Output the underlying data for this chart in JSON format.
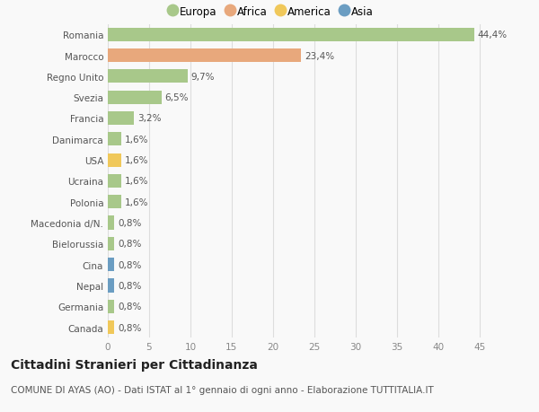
{
  "title": "Cittadini Stranieri per Cittadinanza",
  "subtitle": "COMUNE DI AYAS (AO) - Dati ISTAT al 1° gennaio di ogni anno - Elaborazione TUTTITALIA.IT",
  "legend_labels": [
    "Europa",
    "Africa",
    "America",
    "Asia"
  ],
  "legend_colors": [
    "#a8c88a",
    "#e8a87c",
    "#f0c85a",
    "#6b9dc2"
  ],
  "categories": [
    "Romania",
    "Marocco",
    "Regno Unito",
    "Svezia",
    "Francia",
    "Danimarca",
    "USA",
    "Ucraina",
    "Polonia",
    "Macedonia d/N.",
    "Bielorussia",
    "Cina",
    "Nepal",
    "Germania",
    "Canada"
  ],
  "values": [
    44.4,
    23.4,
    9.7,
    6.5,
    3.2,
    1.6,
    1.6,
    1.6,
    1.6,
    0.8,
    0.8,
    0.8,
    0.8,
    0.8,
    0.8
  ],
  "labels": [
    "44,4%",
    "23,4%",
    "9,7%",
    "6,5%",
    "3,2%",
    "1,6%",
    "1,6%",
    "1,6%",
    "1,6%",
    "0,8%",
    "0,8%",
    "0,8%",
    "0,8%",
    "0,8%",
    "0,8%"
  ],
  "bar_colors": [
    "#a8c88a",
    "#e8a87c",
    "#a8c88a",
    "#a8c88a",
    "#a8c88a",
    "#a8c88a",
    "#f0c85a",
    "#a8c88a",
    "#a8c88a",
    "#a8c88a",
    "#a8c88a",
    "#6b9dc2",
    "#6b9dc2",
    "#a8c88a",
    "#f0c85a"
  ],
  "xlim": [
    0,
    47
  ],
  "xticks": [
    0,
    5,
    10,
    15,
    20,
    25,
    30,
    35,
    40,
    45
  ],
  "background_color": "#f9f9f9",
  "grid_color": "#dddddd",
  "bar_height": 0.65,
  "label_fontsize": 7.5,
  "tick_fontsize": 7.5,
  "title_fontsize": 10,
  "subtitle_fontsize": 7.5
}
